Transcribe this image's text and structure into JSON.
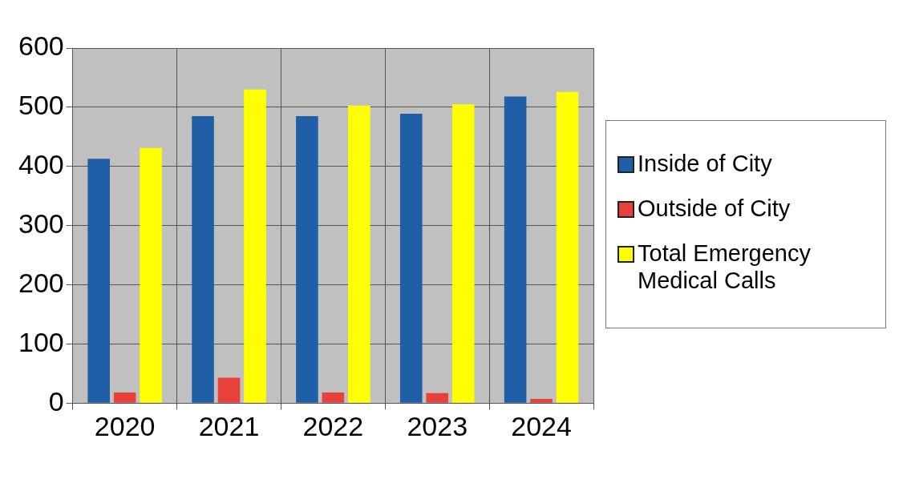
{
  "chart_data": {
    "type": "bar",
    "categories": [
      "2020",
      "2021",
      "2022",
      "2023",
      "2024"
    ],
    "series": [
      {
        "name": "Inside of City",
        "color": "#1f5fa8",
        "values": [
          413,
          485,
          485,
          489,
          518
        ]
      },
      {
        "name": "Outside of City",
        "color": "#e8403a",
        "values": [
          18,
          43,
          18,
          17,
          7
        ]
      },
      {
        "name": "Total Emergency Medical Calls",
        "color": "#ffff00",
        "values": [
          431,
          530,
          503,
          505,
          526
        ]
      }
    ],
    "ylim": [
      0,
      600
    ],
    "yticks": [
      0,
      100,
      200,
      300,
      400,
      500,
      600
    ],
    "grid": true,
    "legend": "right"
  }
}
